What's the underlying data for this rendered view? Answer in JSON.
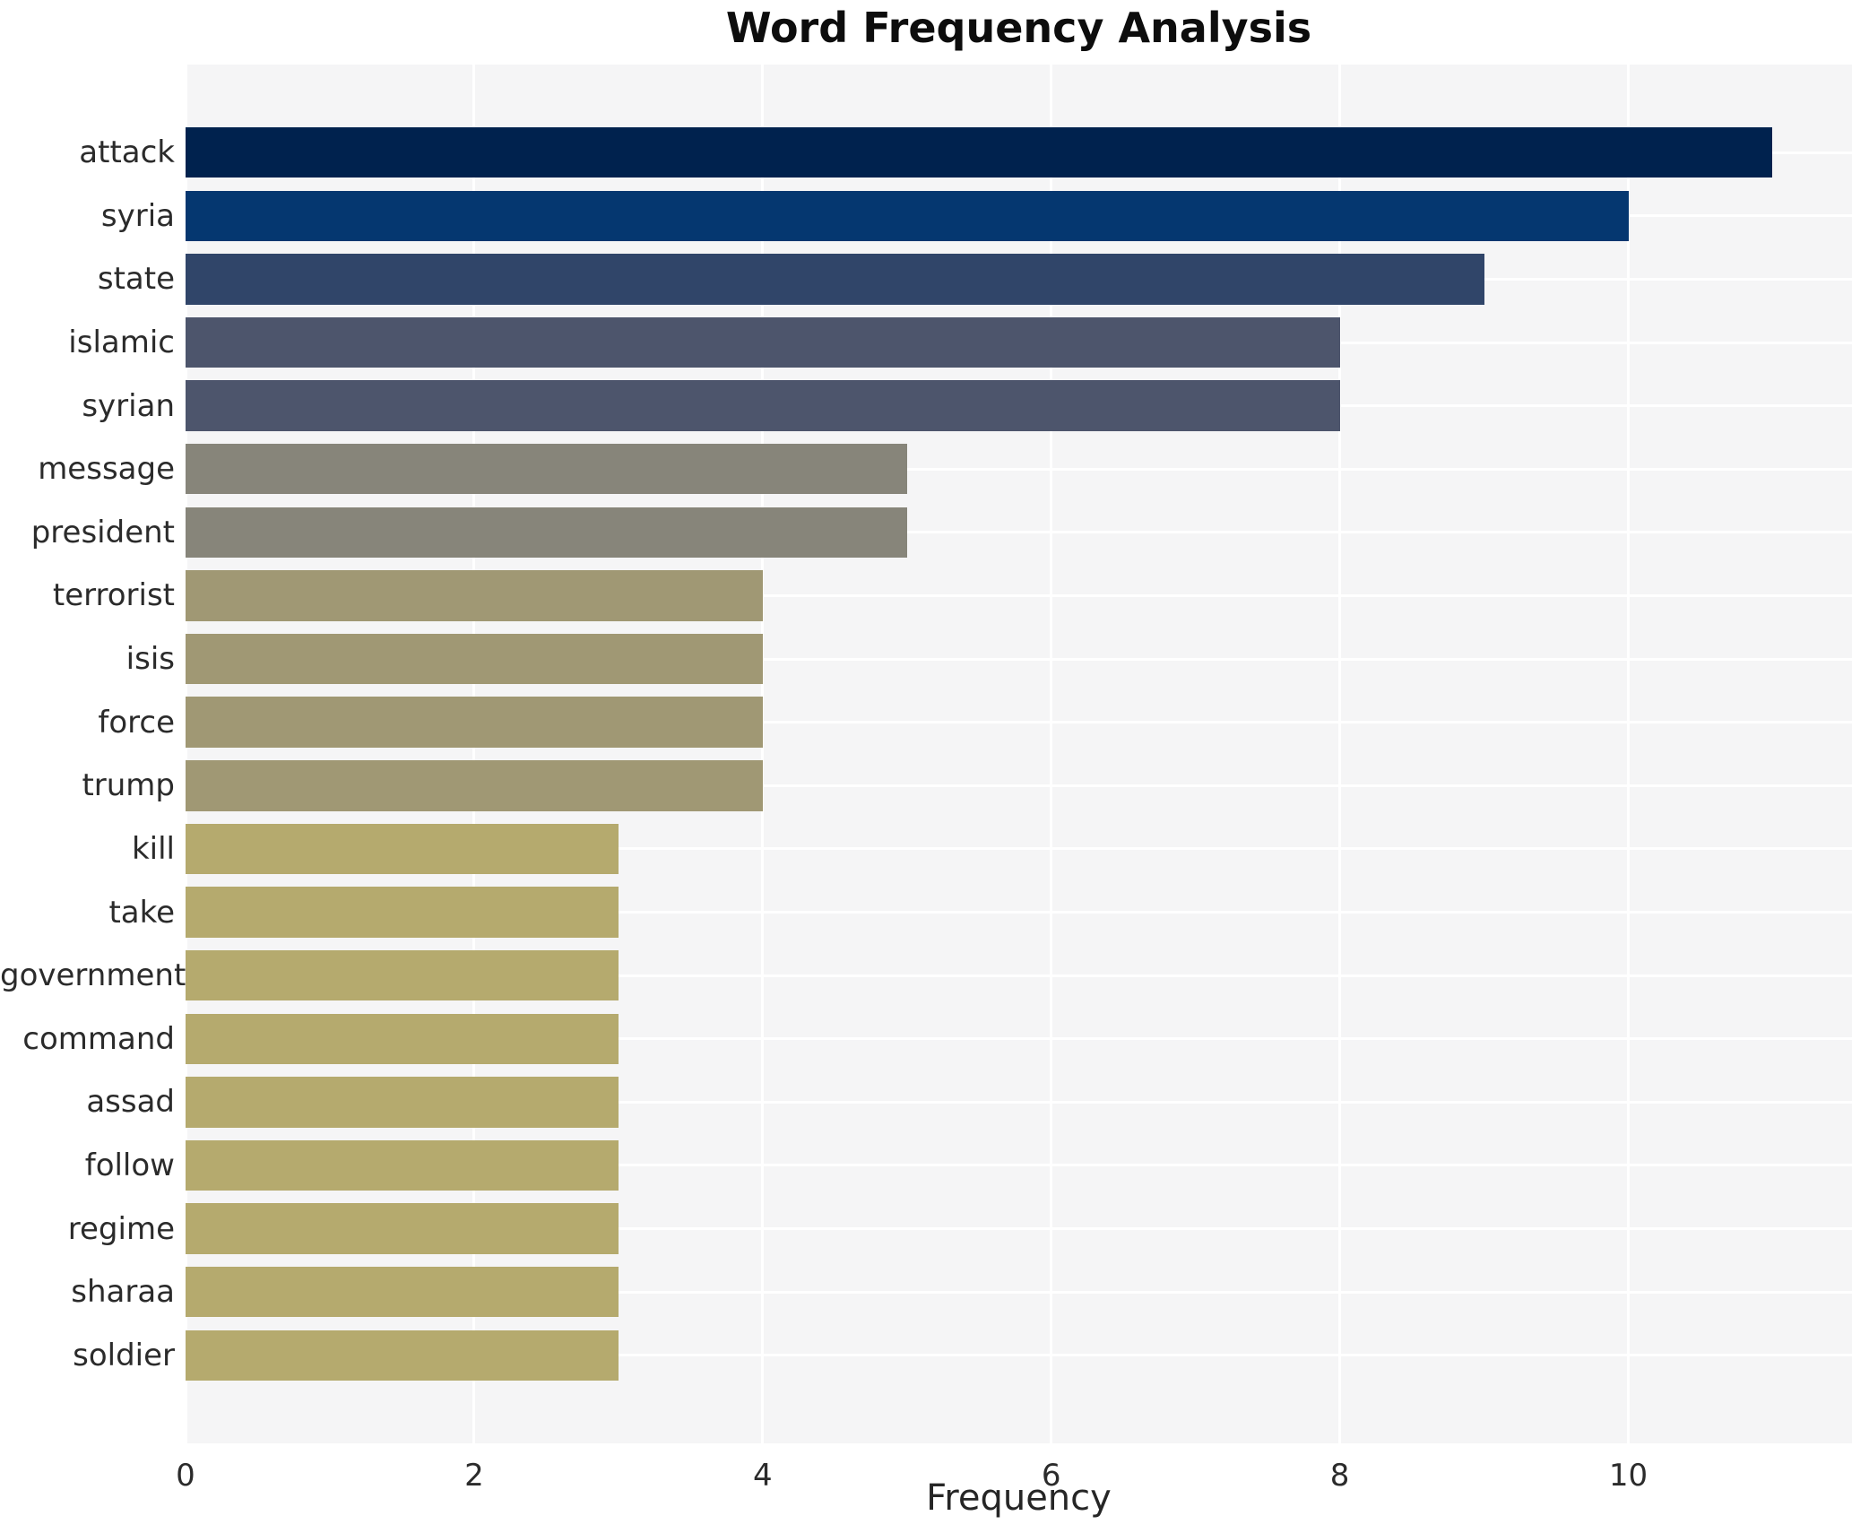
{
  "chart_data": {
    "type": "bar",
    "orientation": "horizontal",
    "title": "Word Frequency Analysis",
    "xlabel": "Frequency",
    "ylabel": "",
    "categories": [
      "attack",
      "syria",
      "state",
      "islamic",
      "syrian",
      "message",
      "president",
      "terrorist",
      "isis",
      "force",
      "trump",
      "kill",
      "take",
      "government",
      "command",
      "assad",
      "follow",
      "regime",
      "sharaa",
      "soldier"
    ],
    "values": [
      11,
      10,
      9,
      8,
      8,
      5,
      5,
      4,
      4,
      4,
      4,
      3,
      3,
      3,
      3,
      3,
      3,
      3,
      3,
      3
    ],
    "bar_colors": [
      "#00224e",
      "#053770",
      "#304569",
      "#4d556c",
      "#4d556c",
      "#87857a",
      "#87857a",
      "#a09874",
      "#a09874",
      "#a09874",
      "#a09874",
      "#b5aa6e",
      "#b5aa6e",
      "#b5aa6e",
      "#b5aa6e",
      "#b5aa6e",
      "#b5aa6e",
      "#b5aa6e",
      "#b5aa6e",
      "#b5aa6e"
    ],
    "xlim": [
      0,
      11.55
    ],
    "xticks": [
      0,
      2,
      4,
      6,
      8,
      10
    ],
    "grid": true,
    "legend": false,
    "panel_bg": "#f5f5f6",
    "grid_color": "#ffffff"
  }
}
